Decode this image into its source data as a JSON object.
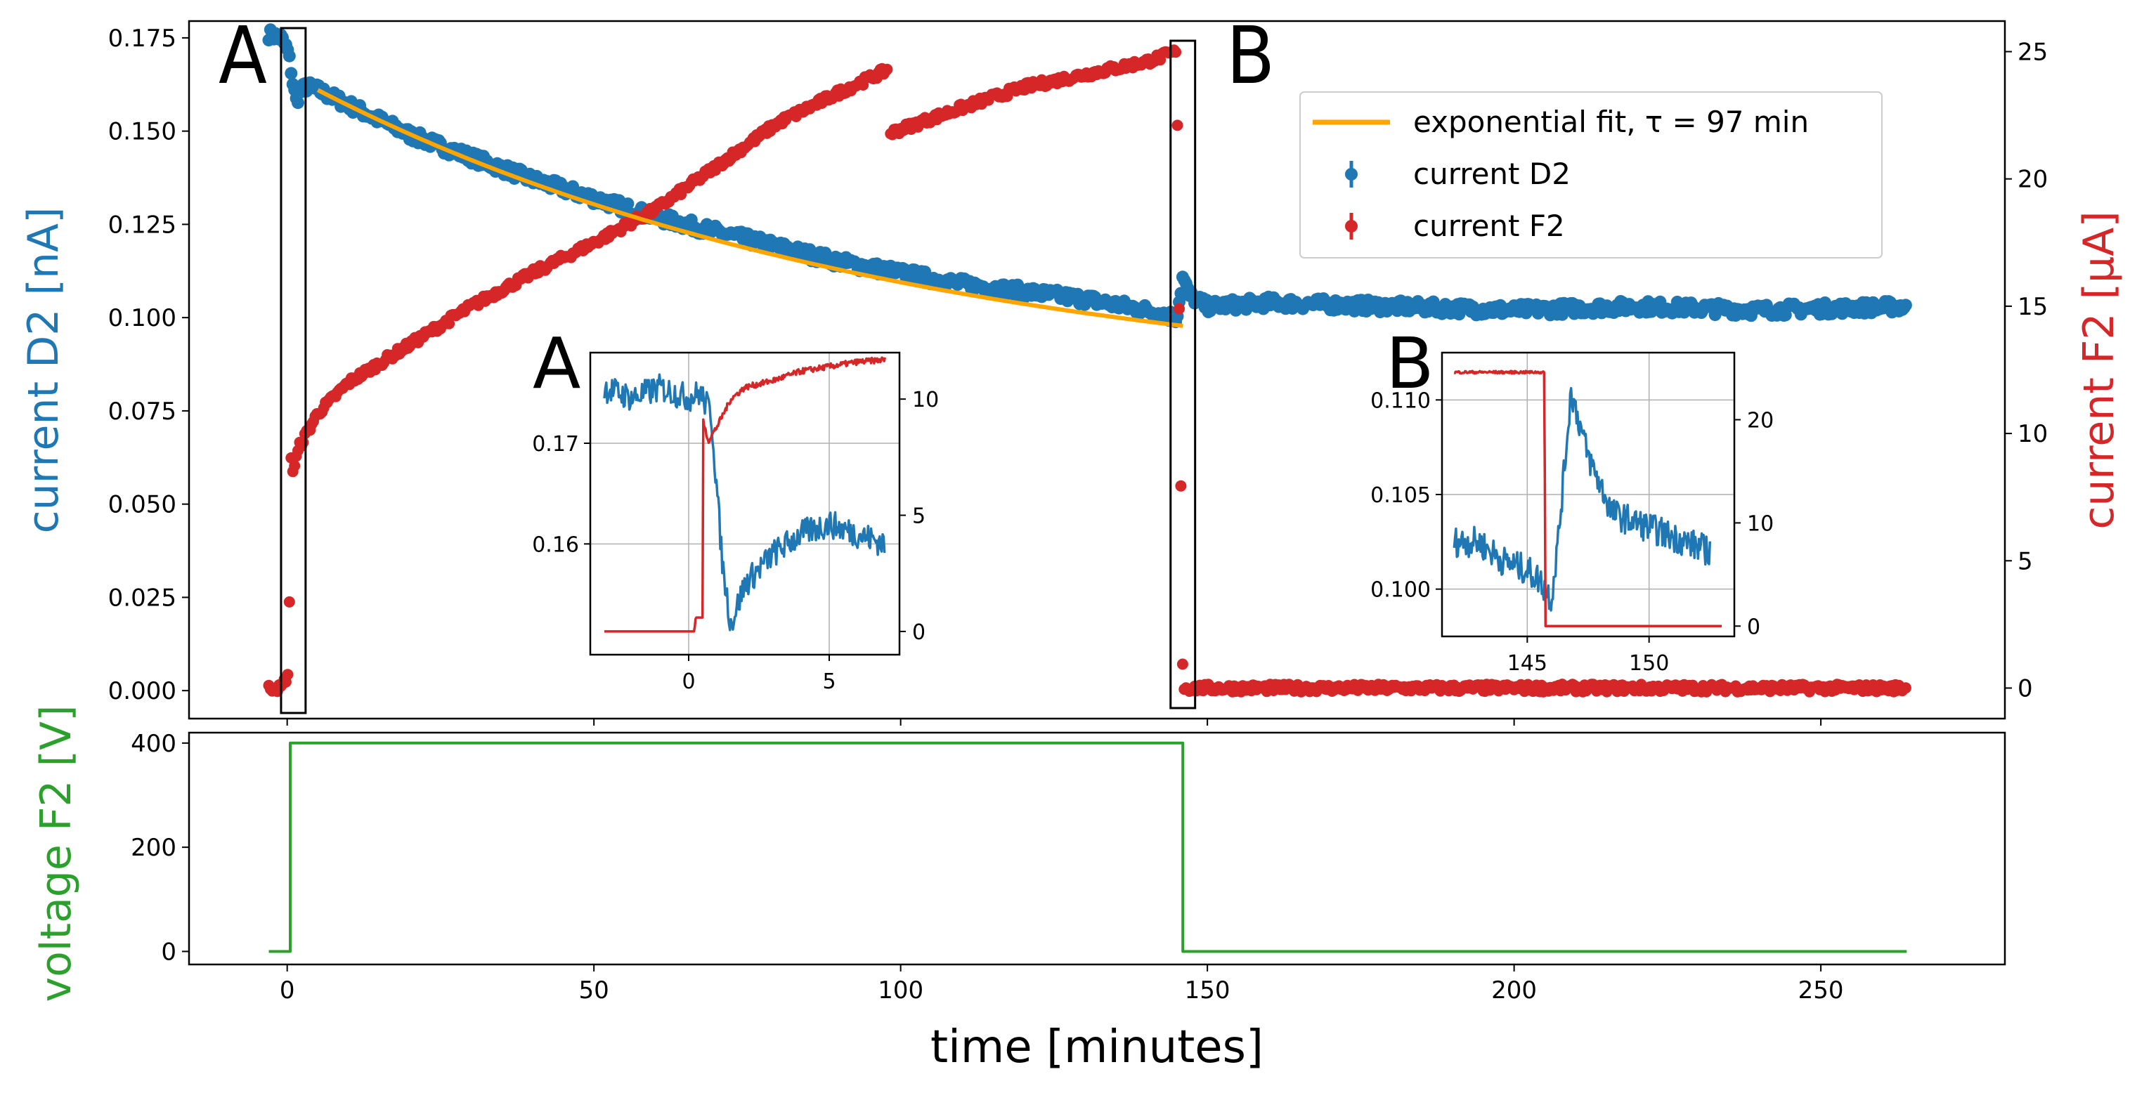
{
  "colors": {
    "d2": "#1f77b4",
    "f2": "#d62728",
    "voltage": "#2ca02c",
    "fit": "#ffa500"
  },
  "chart_data": [
    {
      "type": "scatter",
      "xlim": [
        -16,
        280
      ],
      "y_left": {
        "label": "current D2 [nA]",
        "ylim": [
          -0.0075,
          0.1795
        ],
        "ticks": [
          "0.000",
          "0.025",
          "0.050",
          "0.075",
          "0.100",
          "0.125",
          "0.150",
          "0.175"
        ]
      },
      "y_right": {
        "label": "current F2 [μA]",
        "ylim": [
          -1.2,
          26.2
        ],
        "ticks": [
          "0",
          "5",
          "10",
          "15",
          "20",
          "25"
        ]
      },
      "series": [
        {
          "name": "current D2",
          "axis": "left",
          "points": [
            [
              -3,
              0.176
            ],
            [
              -1,
              0.175
            ],
            [
              0,
              0.172
            ],
            [
              0.5,
              0.168
            ],
            [
              1,
              0.162
            ],
            [
              1.5,
              0.158
            ],
            [
              2,
              0.16
            ],
            [
              3,
              0.162
            ],
            [
              5,
              0.161
            ],
            [
              10,
              0.157
            ],
            [
              20,
              0.149
            ],
            [
              30,
              0.143
            ],
            [
              40,
              0.137
            ],
            [
              50,
              0.132
            ],
            [
              60,
              0.127
            ],
            [
              70,
              0.123
            ],
            [
              80,
              0.119
            ],
            [
              90,
              0.115
            ],
            [
              100,
              0.112
            ],
            [
              110,
              0.109
            ],
            [
              120,
              0.107
            ],
            [
              130,
              0.105
            ],
            [
              140,
              0.102
            ],
            [
              145,
              0.1
            ],
            [
              146,
              0.111
            ],
            [
              147,
              0.106
            ],
            [
              150,
              0.103
            ],
            [
              160,
              0.104
            ],
            [
              180,
              0.103
            ],
            [
              200,
              0.102
            ],
            [
              220,
              0.103
            ],
            [
              240,
              0.102
            ],
            [
              264,
              0.103
            ]
          ]
        },
        {
          "name": "current F2",
          "axis": "right",
          "points": [
            [
              -3,
              0
            ],
            [
              -1,
              0
            ],
            [
              0.3,
              0.6
            ],
            [
              0.5,
              9.5
            ],
            [
              0.9,
              8.5
            ],
            [
              2,
              9.5
            ],
            [
              5,
              10.8
            ],
            [
              10,
              12.0
            ],
            [
              20,
              13.5
            ],
            [
              30,
              15.0
            ],
            [
              40,
              16.3
            ],
            [
              50,
              17.5
            ],
            [
              60,
              18.8
            ],
            [
              70,
              20.5
            ],
            [
              80,
              22.2
            ],
            [
              90,
              23.4
            ],
            [
              98,
              24.3
            ],
            [
              98.3,
              21.8
            ],
            [
              110,
              22.8
            ],
            [
              120,
              23.6
            ],
            [
              130,
              24.1
            ],
            [
              140,
              24.6
            ],
            [
              145,
              25.0
            ],
            [
              146,
              0
            ],
            [
              160,
              0
            ],
            [
              200,
              0
            ],
            [
              264,
              0
            ]
          ]
        },
        {
          "name": "exponential fit, τ = 97 min",
          "axis": "left",
          "model": {
            "t0": 5,
            "t1": 146,
            "A": 0.0825,
            "tau": 97,
            "C": 0.0785
          }
        }
      ],
      "annotations": [
        {
          "label": "A",
          "x_range": [
            -1,
            3
          ]
        },
        {
          "label": "B",
          "x_range": [
            144,
            148
          ]
        }
      ]
    },
    {
      "type": "line",
      "inset": "A",
      "xlim": [
        -3.5,
        7.5
      ],
      "ylim_left": [
        0.149,
        0.179
      ],
      "ylim_right": [
        -1,
        12
      ],
      "x_ticks": [
        "0",
        "5"
      ],
      "y_left_ticks": [
        "0.16",
        "0.17"
      ],
      "y_right_ticks": [
        "0",
        "5",
        "10"
      ],
      "series": [
        {
          "axis": "left",
          "points": [
            [
              -3,
              0.1755
            ],
            [
              -2,
              0.1745
            ],
            [
              -1,
              0.1755
            ],
            [
              0,
              0.1745
            ],
            [
              0.4,
              0.175
            ],
            [
              0.8,
              0.173
            ],
            [
              1.2,
              0.158
            ],
            [
              1.5,
              0.152
            ],
            [
              2,
              0.156
            ],
            [
              3,
              0.159
            ],
            [
              4,
              0.161
            ],
            [
              5,
              0.162
            ],
            [
              6,
              0.161
            ],
            [
              7,
              0.16
            ]
          ]
        },
        {
          "axis": "right",
          "points": [
            [
              -3,
              0
            ],
            [
              0.2,
              0
            ],
            [
              0.25,
              0.6
            ],
            [
              0.5,
              0.6
            ],
            [
              0.52,
              9
            ],
            [
              0.7,
              8.2
            ],
            [
              1,
              8.8
            ],
            [
              1.5,
              10
            ],
            [
              2,
              10.5
            ],
            [
              3,
              10.8
            ],
            [
              4,
              11.2
            ],
            [
              5,
              11.4
            ],
            [
              6,
              11.6
            ],
            [
              7,
              11.7
            ]
          ]
        }
      ]
    },
    {
      "type": "line",
      "inset": "B",
      "xlim": [
        141.5,
        153.5
      ],
      "ylim_left": [
        0.0975,
        0.1125
      ],
      "ylim_right": [
        -1,
        26.5
      ],
      "x_ticks": [
        "145",
        "150"
      ],
      "y_left_ticks": [
        "0.100",
        "0.105",
        "0.110"
      ],
      "y_right_ticks": [
        "0",
        "10",
        "20"
      ],
      "series": [
        {
          "axis": "left",
          "points": [
            [
              142,
              0.1025
            ],
            [
              143,
              0.1025
            ],
            [
              144,
              0.1015
            ],
            [
              145,
              0.101
            ],
            [
              145.5,
              0.1005
            ],
            [
              146,
              0.0995
            ],
            [
              146.3,
              0.103
            ],
            [
              146.8,
              0.1105
            ],
            [
              147.5,
              0.107
            ],
            [
              148.5,
              0.104
            ],
            [
              149.5,
              0.1035
            ],
            [
              150.5,
              0.103
            ],
            [
              151.5,
              0.1025
            ],
            [
              152.5,
              0.102
            ]
          ]
        },
        {
          "axis": "right",
          "points": [
            [
              142,
              24.6
            ],
            [
              145.7,
              24.6
            ],
            [
              145.75,
              0
            ],
            [
              153,
              0
            ]
          ]
        }
      ]
    },
    {
      "type": "line",
      "xlim": [
        -16,
        280
      ],
      "ylim": [
        -25,
        420
      ],
      "x_ticks": [
        "0",
        "50",
        "100",
        "150",
        "200",
        "250"
      ],
      "y_ticks": [
        "0",
        "200",
        "400"
      ],
      "xlabel": "time [minutes]",
      "ylabel": "voltage F2 [V]",
      "series": [
        {
          "axis": "left",
          "points": [
            [
              -3,
              0
            ],
            [
              0.5,
              0
            ],
            [
              0.5,
              400
            ],
            [
              146,
              400
            ],
            [
              146,
              0
            ],
            [
              264,
              0
            ]
          ]
        }
      ]
    }
  ],
  "legend": {
    "entries": [
      "exponential fit, τ = 97 min",
      "current D2",
      "current F2"
    ]
  },
  "labels": {
    "marker_a": "A",
    "marker_b": "B",
    "inset_a": "A",
    "inset_b": "B"
  }
}
